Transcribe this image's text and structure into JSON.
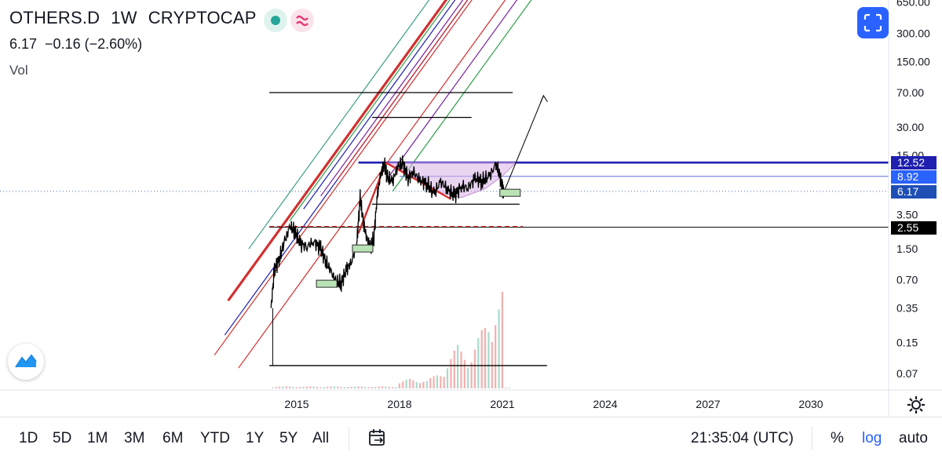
{
  "header": {
    "symbol": "OTHERS.D",
    "interval": "1W",
    "exchange": "CRYPTOCAP",
    "last": "6.17",
    "change": "−0.16 (−2.60%)",
    "vol_label": "Vol"
  },
  "icons": {
    "market_status": "green-dot-icon",
    "compare": "approx-icon",
    "fullscreen": "fullscreen-icon",
    "logo": "tradingview-logo-icon",
    "settings": "gear-icon",
    "date_range": "calendar-range-icon"
  },
  "colors": {
    "accent": "#2962ff",
    "price_line": "#000000",
    "trend_red": "#d32f2f",
    "channel_blue": "#1f1fb0",
    "channel_purple": "#7b1fa2",
    "channel_green": "#2e9e47",
    "channel_teal": "#3d9e8a",
    "cup_fill": "#d9b3e6",
    "volume_red": "#f4a6a6",
    "volume_green": "#9ed6c8"
  },
  "price_tags": [
    {
      "label": "12.52",
      "value": 12.52,
      "color": "#1f1fb0"
    },
    {
      "label": "8.92",
      "value": 8.92,
      "color": "#2962ff"
    },
    {
      "label": "6.17",
      "value": 6.17,
      "color": "#1f4fb5"
    },
    {
      "label": "2.55",
      "value": 2.55,
      "color": "#000000"
    }
  ],
  "bottom_bar": {
    "ranges": [
      "1D",
      "5D",
      "1M",
      "3M",
      "6M",
      "YTD",
      "1Y",
      "5Y",
      "All"
    ],
    "time": "21:35:04 (UTC)",
    "percent": "%",
    "log": "log",
    "auto": "auto"
  },
  "chart_data": {
    "type": "line",
    "scale": "log",
    "title": "OTHERS.D 1W CRYPTOCAP",
    "x_ticks": [
      "2015",
      "2018",
      "2021",
      "2024",
      "2027",
      "2030"
    ],
    "y_ticks": [
      "650.00",
      "300.00",
      "150.00",
      "70.00",
      "30.00",
      "15.00",
      "3.50",
      "1.50",
      "0.70",
      "0.35",
      "0.15",
      "0.07"
    ],
    "xlim": [
      2012.5,
      2032.2
    ],
    "ylim": [
      0.052,
      700
    ],
    "grid": false,
    "series": [
      {
        "x": [
          2014.25,
          2014.35,
          2014.5,
          2014.65,
          2014.8,
          2014.95,
          2015.1,
          2015.3,
          2015.5,
          2015.7,
          2015.85,
          2016.0,
          2016.15,
          2016.3,
          2016.45,
          2016.6,
          2016.75,
          2016.85,
          2016.95,
          2017.05,
          2017.15,
          2017.25,
          2017.35,
          2017.45,
          2017.55,
          2017.65,
          2017.8,
          2017.95,
          2018.1,
          2018.25,
          2018.4,
          2018.6,
          2018.8,
          2019.0,
          2019.2,
          2019.4,
          2019.6,
          2019.8,
          2020.0,
          2020.2,
          2020.4,
          2020.6,
          2020.8,
          2020.9,
          2021.0,
          2021.05
        ],
        "y": [
          0.35,
          0.9,
          1.2,
          1.8,
          2.6,
          2.3,
          1.7,
          1.6,
          1.8,
          1.5,
          1.1,
          0.85,
          0.66,
          0.65,
          0.9,
          1.1,
          1.7,
          5.2,
          2.8,
          1.9,
          1.5,
          2.0,
          5.5,
          9.5,
          12.5,
          8.5,
          8.0,
          11.5,
          12.0,
          8.5,
          10.0,
          8.0,
          7.5,
          5.8,
          7.8,
          6.5,
          5.5,
          7.0,
          6.8,
          8.5,
          7.9,
          8.8,
          11.5,
          10.2,
          6.5,
          6.17
        ]
      }
    ],
    "volume": {
      "x": [
        2017.9,
        2018.3,
        2018.8,
        2019.3,
        2019.7,
        2020.1,
        2020.4,
        2020.7,
        2020.9,
        2021.0
      ],
      "relative": [
        0.05,
        0.1,
        0.08,
        0.2,
        0.45,
        0.35,
        0.6,
        0.85,
        0.9,
        1.0
      ]
    },
    "horizontal_levels": [
      12.52,
      8.92,
      6.17,
      2.55
    ],
    "annotations": {
      "trend_top": [
        [
          2014.0,
          0.6
        ],
        [
          2017.5,
          12.5
        ]
      ],
      "channel_slope_per_year": 3.2
    }
  }
}
